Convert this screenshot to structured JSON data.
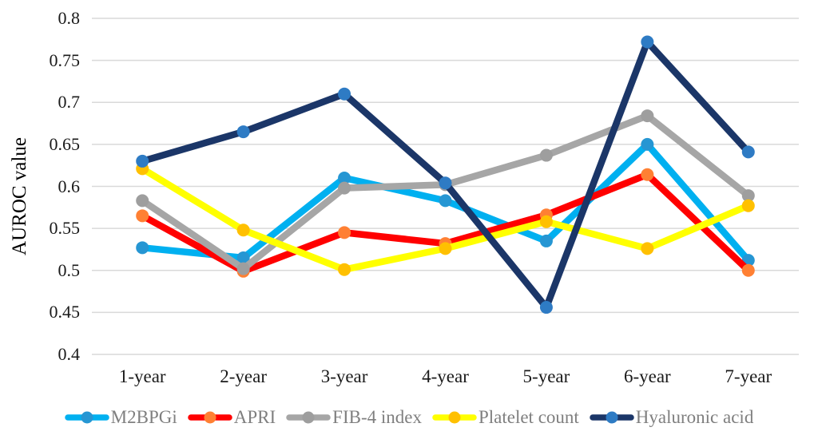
{
  "chart_data": {
    "type": "line",
    "title": "",
    "xlabel": "",
    "ylabel": "AUROC value",
    "categories": [
      "1-year",
      "2-year",
      "3-year",
      "4-year",
      "5-year",
      "6-year",
      "7-year"
    ],
    "series": [
      {
        "name": "M2BPGi",
        "values": [
          0.527,
          0.515,
          0.61,
          0.583,
          0.535,
          0.65,
          0.512
        ],
        "line_color": "#00B0F0",
        "marker_color": "#2696D3"
      },
      {
        "name": "APRI",
        "values": [
          0.565,
          0.499,
          0.545,
          0.532,
          0.566,
          0.614,
          0.5
        ],
        "line_color": "#FF0000",
        "marker_color": "#FF8033"
      },
      {
        "name": "FIB-4 index",
        "values": [
          0.583,
          0.502,
          0.598,
          0.602,
          0.637,
          0.684,
          0.589
        ],
        "line_color": "#A6A6A6",
        "marker_color": "#9E9E9E"
      },
      {
        "name": "Platelet count",
        "values": [
          0.621,
          0.548,
          0.501,
          0.526,
          0.558,
          0.526,
          0.577
        ],
        "line_color": "#FFFF00",
        "marker_color": "#FFC000"
      },
      {
        "name": "Hyaluronic acid",
        "values": [
          0.63,
          0.665,
          0.71,
          0.604,
          0.456,
          0.772,
          0.641
        ],
        "line_color": "#1B3668",
        "marker_color": "#2E7BC4"
      }
    ],
    "y_tick_labels": [
      "0.8",
      "0.75",
      "0.7",
      "0.65",
      "0.6",
      "0.55",
      "0.5",
      "0.45",
      "0.4"
    ],
    "ylim": [
      0.4,
      0.8
    ],
    "grid": "horizontal",
    "gridline_color": "#D9D9D9",
    "axis_text_color": "#1a1a1a",
    "legend_position": "bottom",
    "legend_text_color": "#7f7f7f"
  }
}
